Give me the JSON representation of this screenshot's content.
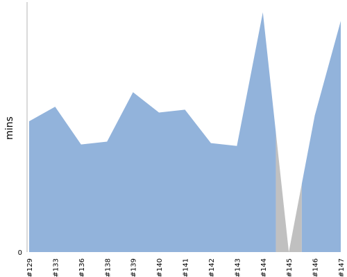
{
  "chart_data": {
    "type": "area",
    "title": "",
    "xlabel": "",
    "ylabel": "mins",
    "categories": [
      "#129",
      "#133",
      "#136",
      "#138",
      "#139",
      "#140",
      "#141",
      "#142",
      "#143",
      "#144",
      "#145",
      "#146",
      "#147"
    ],
    "series": [
      {
        "values": [
          9.0,
          10.0,
          7.4,
          7.6,
          11.0,
          9.6,
          9.8,
          7.5,
          7.3,
          16.5,
          0.0,
          9.4,
          15.9
        ],
        "color": "#92b3db"
      }
    ],
    "highlight": {
      "category": "#145",
      "color": "#c0c0c0"
    },
    "y_ticks": [
      {
        "value": 0,
        "label": "0"
      }
    ],
    "ylim": [
      0,
      17.2
    ],
    "grid": false,
    "legend": "none",
    "axis_color": "#b5b5b5"
  }
}
